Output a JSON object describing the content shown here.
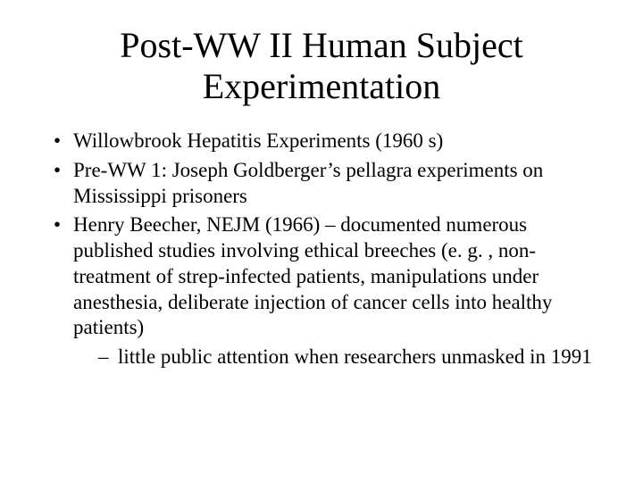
{
  "background_color": "#ffffff",
  "text_color": "#000000",
  "font_family": "Times New Roman",
  "title": {
    "text": "Post-WW II Human Subject Experimentation",
    "fontsize": 40,
    "align": "center"
  },
  "body": {
    "fontsize": 23,
    "bullets": [
      {
        "text": "Willowbrook Hepatitis Experiments (1960 s)"
      },
      {
        "text": "Pre-WW 1: Joseph Goldberger’s pellagra experiments on Mississippi prisoners"
      },
      {
        "text": "Henry Beecher, NEJM (1966) – documented numerous published studies involving ethical breeches (e. g. , non-treatment of strep-infected patients, manipulations under anesthesia, deliberate injection of cancer cells into healthy patients)",
        "sub": [
          {
            "text": "little public attention when researchers unmasked in 1991"
          }
        ]
      }
    ]
  }
}
